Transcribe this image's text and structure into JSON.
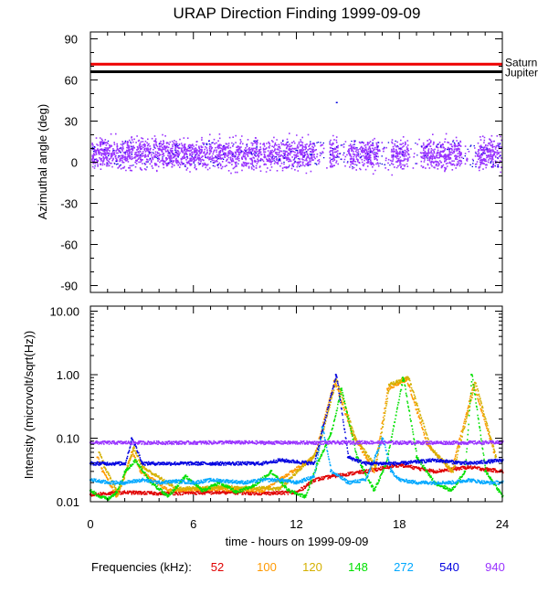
{
  "title": "URAP Direction Finding  1999-09-09",
  "colors": {
    "c52": "#e00000",
    "c100": "#ff9900",
    "c120": "#d4b000",
    "c148": "#00e000",
    "c272": "#00a8ff",
    "c540": "#0000e0",
    "c940": "#9933ff",
    "saturn": "#ee0000",
    "jupiter": "#000000",
    "scatter": "#9933ff"
  },
  "chart_data": [
    {
      "type": "scatter",
      "panel": "top",
      "ylabel": "Azimuthal angle (deg)",
      "xlim": [
        0,
        24
      ],
      "ylim": [
        -95,
        95
      ],
      "yticks": [
        90,
        60,
        30,
        0,
        -30,
        -60,
        -90
      ],
      "grid": false,
      "reference_lines": [
        {
          "name": "Saturn",
          "y": 71.5
        },
        {
          "name": "Jupiter",
          "y": 66
        }
      ],
      "scatter_summary": {
        "center_deg": 6,
        "spread_deg": 12,
        "gaps_hours": [
          [
            13.0,
            13.9
          ],
          [
            14.4,
            15.0
          ],
          [
            16.8,
            17.5
          ],
          [
            18.5,
            19.2
          ],
          [
            21.6,
            22.5
          ]
        ],
        "outliers": [
          {
            "x": 14.3,
            "y": 44
          }
        ]
      }
    },
    {
      "type": "scatter",
      "panel": "bottom",
      "xlabel": "time - hours on 1999-09-09",
      "ylabel": "Intensity (microvolt/sqrt(Hz))",
      "xlim": [
        0,
        24
      ],
      "ylim": [
        0.01,
        12
      ],
      "yscale": "log",
      "xticks": [
        "0",
        "6",
        "12",
        "18",
        "24"
      ],
      "yticks": [
        "10.00",
        "1.00",
        "0.10",
        "0.01"
      ],
      "legend_title": "Frequencies (kHz):",
      "legend_location": "bottom",
      "series": [
        {
          "name": "52",
          "color_key": "c52",
          "x": [
            0,
            2,
            4,
            6,
            8,
            10,
            12,
            13,
            14,
            16,
            18,
            20,
            22,
            24
          ],
          "values": [
            0.013,
            0.014,
            0.0135,
            0.0138,
            0.014,
            0.0135,
            0.014,
            0.022,
            0.025,
            0.03,
            0.038,
            0.03,
            0.035,
            0.03
          ]
        },
        {
          "name": "100",
          "color_key": "c100",
          "x": [
            0.4,
            0.7,
            1.5,
            2.4,
            2.9,
            4.5,
            7,
            10,
            13,
            14.2,
            15.2,
            16.5,
            17.3,
            18.4,
            19.6,
            21.0,
            22.3,
            23.5
          ],
          "values": [
            0.05,
            0.03,
            0.012,
            0.06,
            0.03,
            0.015,
            0.016,
            0.015,
            0.05,
            0.8,
            0.12,
            0.03,
            0.6,
            0.85,
            0.08,
            0.03,
            0.7,
            0.06
          ]
        },
        {
          "name": "120",
          "color_key": "c120",
          "x": [
            0.5,
            0.8,
            1.6,
            2.5,
            3.0,
            5,
            8,
            11,
            13.2,
            14.3,
            15.4,
            16.6,
            17.4,
            18.5,
            19.8,
            21.1,
            22.4,
            23.6
          ],
          "values": [
            0.06,
            0.035,
            0.013,
            0.07,
            0.035,
            0.016,
            0.017,
            0.016,
            0.06,
            0.85,
            0.1,
            0.035,
            0.7,
            0.9,
            0.07,
            0.03,
            0.75,
            0.05
          ]
        },
        {
          "name": "148",
          "color_key": "c148",
          "x": [
            0,
            0.5,
            1.0,
            1.5,
            2.0,
            2.6,
            3.5,
            4.5,
            5.5,
            6.5,
            7.5,
            8.5,
            9.5,
            10.5,
            11.5,
            12.5,
            13.2,
            14.0,
            14.6,
            15.5,
            16.5,
            17.2,
            18.2,
            19.0,
            20.0,
            21.0,
            21.8,
            22.2,
            23.0,
            24.0
          ],
          "values": [
            0.015,
            0.012,
            0.011,
            0.014,
            0.03,
            0.045,
            0.02,
            0.012,
            0.025,
            0.015,
            0.02,
            0.014,
            0.018,
            0.03,
            0.015,
            0.012,
            0.04,
            0.12,
            0.6,
            0.05,
            0.015,
            0.04,
            0.9,
            0.05,
            0.02,
            0.015,
            0.03,
            1.0,
            0.03,
            0.012
          ]
        },
        {
          "name": "272",
          "color_key": "c272",
          "x": [
            0,
            1,
            2,
            3,
            4,
            5,
            6,
            7,
            8,
            9,
            10,
            11,
            12,
            13,
            13.5,
            14,
            15,
            16,
            17,
            17.5,
            18,
            19,
            20,
            21,
            22,
            23,
            24
          ],
          "values": [
            0.022,
            0.02,
            0.02,
            0.022,
            0.02,
            0.021,
            0.02,
            0.022,
            0.021,
            0.02,
            0.022,
            0.022,
            0.02,
            0.025,
            0.15,
            0.03,
            0.02,
            0.022,
            0.1,
            0.03,
            0.022,
            0.02,
            0.02,
            0.02,
            0.022,
            0.02,
            0.02
          ]
        },
        {
          "name": "540",
          "color_key": "c540",
          "x": [
            0,
            2,
            2.4,
            3,
            6,
            10,
            11,
            13,
            14.3,
            15,
            16,
            18,
            20,
            22,
            24
          ],
          "values": [
            0.04,
            0.04,
            0.1,
            0.04,
            0.04,
            0.04,
            0.045,
            0.04,
            1.0,
            0.05,
            0.04,
            0.04,
            0.045,
            0.04,
            0.045
          ]
        },
        {
          "name": "940",
          "color_key": "c940",
          "x": [
            0,
            2,
            4,
            6,
            8,
            10,
            12,
            13,
            14,
            16,
            18,
            20,
            22,
            24
          ],
          "values": [
            0.085,
            0.085,
            0.085,
            0.085,
            0.086,
            0.085,
            0.085,
            0.085,
            0.085,
            0.086,
            0.085,
            0.085,
            0.085,
            0.086
          ]
        }
      ]
    }
  ]
}
